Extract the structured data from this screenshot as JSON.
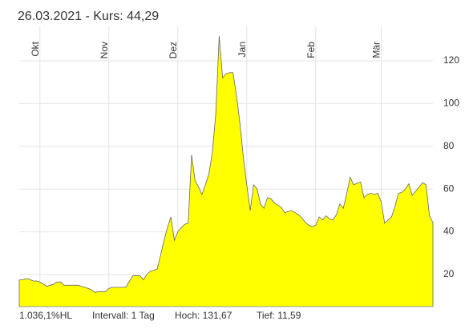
{
  "header": {
    "title": "26.03.2021  - Kurs: 44,29"
  },
  "chart_data": {
    "type": "area",
    "color": "#ffff00",
    "line_color": "#666666",
    "grid": true,
    "categories": [
      null,
      null,
      null,
      null,
      null,
      null,
      "Okt",
      null,
      null,
      null,
      null,
      null,
      null,
      null,
      null,
      null,
      null,
      null,
      null,
      null,
      null,
      null,
      null,
      null,
      null,
      null,
      "Nov",
      null,
      null,
      null,
      null,
      null,
      null,
      null,
      null,
      null,
      null,
      null,
      null,
      null,
      null,
      null,
      null,
      null,
      null,
      null,
      "Dez",
      null,
      null,
      null,
      null,
      null,
      null,
      null,
      null,
      null,
      null,
      null,
      null,
      null,
      null,
      null,
      null,
      null,
      null,
      null,
      "Jan",
      null,
      null,
      null,
      null,
      null,
      null,
      null,
      null,
      null,
      null,
      null,
      null,
      null,
      null,
      null,
      null,
      null,
      null,
      null,
      "Feb",
      null,
      null,
      null,
      null,
      null,
      null,
      null,
      null,
      null,
      null,
      null,
      null,
      null,
      null,
      null,
      null,
      null,
      null,
      "Mär",
      null,
      null,
      null,
      null,
      null,
      null,
      null,
      null,
      null,
      null,
      null,
      null,
      null,
      null,
      null
    ],
    "values": [
      17.4,
      17.6,
      18,
      17.8,
      17,
      17,
      16.5,
      15.5,
      14.5,
      15,
      15.5,
      16.5,
      16.5,
      15,
      15,
      15,
      15,
      15,
      14.5,
      14,
      13.5,
      12.8,
      11.59,
      12,
      12,
      12,
      13.5,
      14,
      14,
      14,
      14,
      14.2,
      17,
      19.5,
      19.5,
      19.5,
      17.5,
      20,
      21.5,
      22,
      22.5,
      29,
      36,
      42,
      47,
      36,
      40,
      42,
      43.5,
      44,
      76,
      64,
      61,
      57.5,
      62,
      67,
      77,
      95,
      131.67,
      112,
      114,
      114.5,
      114.5,
      104,
      91,
      75,
      62,
      50,
      62,
      60,
      53,
      51,
      56,
      55.5,
      53.5,
      52.5,
      51.5,
      49,
      49.5,
      50,
      49,
      48,
      46.5,
      44.5,
      43,
      42.5,
      43,
      47,
      45.5,
      47.5,
      46,
      45.5,
      48,
      53,
      51,
      58,
      65.5,
      62,
      62.7,
      63.3,
      56,
      57.5,
      58,
      57.5,
      58,
      54,
      44,
      45.5,
      47,
      52,
      58,
      58.5,
      60,
      62.5,
      57,
      59,
      61,
      63,
      62,
      47.5,
      44.29
    ],
    "ylim": [
      5,
      135
    ],
    "yticks": [
      20,
      40,
      60,
      80,
      100,
      120
    ]
  },
  "footer": [
    "1.036,1%HL",
    "Intervall: 1 Tag",
    "Hoch: 131,67",
    "Tief: 11,59"
  ]
}
